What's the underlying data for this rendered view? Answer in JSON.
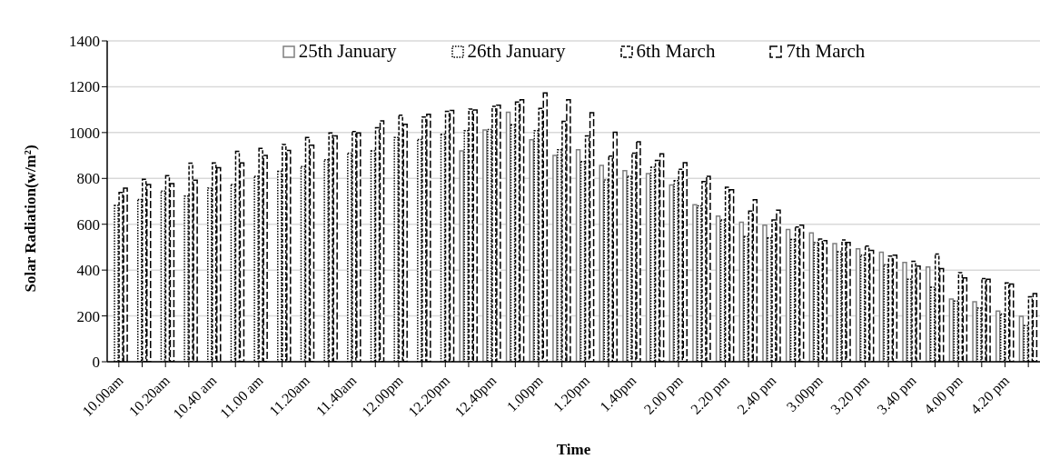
{
  "chart_data": {
    "type": "bar",
    "xlabel": "Time",
    "ylabel": "Solar Radiation(w/m²)",
    "categories": [
      "10.00am",
      null,
      "10.20am",
      null,
      "10.40 am",
      null,
      "11.00 am",
      null,
      "11.20am",
      null,
      "11.40am",
      null,
      "12.00pm",
      null,
      "12.20pm",
      null,
      "12.40pm",
      null,
      "1.00pm",
      null,
      "1.20pm",
      null,
      "1.40pm",
      null,
      "2.00 pm",
      null,
      "2.20 pm",
      null,
      "2.40 pm",
      null,
      "3.00pm",
      null,
      "3.20 pm",
      null,
      "3.40 pm",
      null,
      "4.00 pm",
      null,
      "4.20 pm",
      null
    ],
    "series": [
      {
        "name": "25th January",
        "color": "#7f7f7f",
        "line_style": "solid",
        "values": [
          null,
          null,
          null,
          null,
          null,
          null,
          null,
          null,
          null,
          null,
          null,
          null,
          null,
          null,
          null,
          920,
          1011,
          1089,
          969,
          900,
          925,
          857,
          834,
          821,
          771,
          685,
          636,
          609,
          596,
          577,
          562,
          516,
          493,
          478,
          433,
          413,
          274,
          262,
          221,
          198
        ]
      },
      {
        "name": "26th January",
        "color": "#000000",
        "line_style": "dotted",
        "values": [
          682,
          708,
          745,
          723,
          758,
          773,
          809,
          831,
          852,
          881,
          910,
          920,
          979,
          970,
          992,
          1008,
          1013,
          1034,
          1008,
          925,
          874,
          793,
          809,
          849,
          790,
          680,
          619,
          546,
          540,
          533,
          520,
          480,
          465,
          423,
          360,
          325,
          265,
          234,
          208,
          158
        ]
      },
      {
        "name": "6th March",
        "color": "#000000",
        "line_style": "dashed",
        "values": [
          739,
          796,
          812,
          867,
          868,
          918,
          931,
          948,
          979,
          998,
          1004,
          1021,
          1076,
          1068,
          1093,
          1103,
          1114,
          1133,
          1106,
          1049,
          986,
          897,
          910,
          878,
          840,
          786,
          761,
          657,
          619,
          588,
          535,
          531,
          505,
          461,
          438,
          470,
          389,
          363,
          344,
          284
        ]
      },
      {
        "name": "7th March",
        "color": "#000000",
        "line_style": "dashed",
        "values": [
          758,
          773,
          777,
          792,
          847,
          868,
          900,
          922,
          945,
          986,
          998,
          1051,
          1036,
          1080,
          1097,
          1099,
          1119,
          1143,
          1173,
          1143,
          1087,
          1001,
          960,
          907,
          869,
          809,
          751,
          707,
          661,
          596,
          528,
          521,
          486,
          465,
          417,
          407,
          366,
          360,
          339,
          297
        ]
      }
    ],
    "ylim": [
      0,
      1400
    ],
    "yticks": [
      0,
      200,
      400,
      600,
      800,
      1000,
      1200,
      1400
    ],
    "grid": "y",
    "legend": "top"
  }
}
